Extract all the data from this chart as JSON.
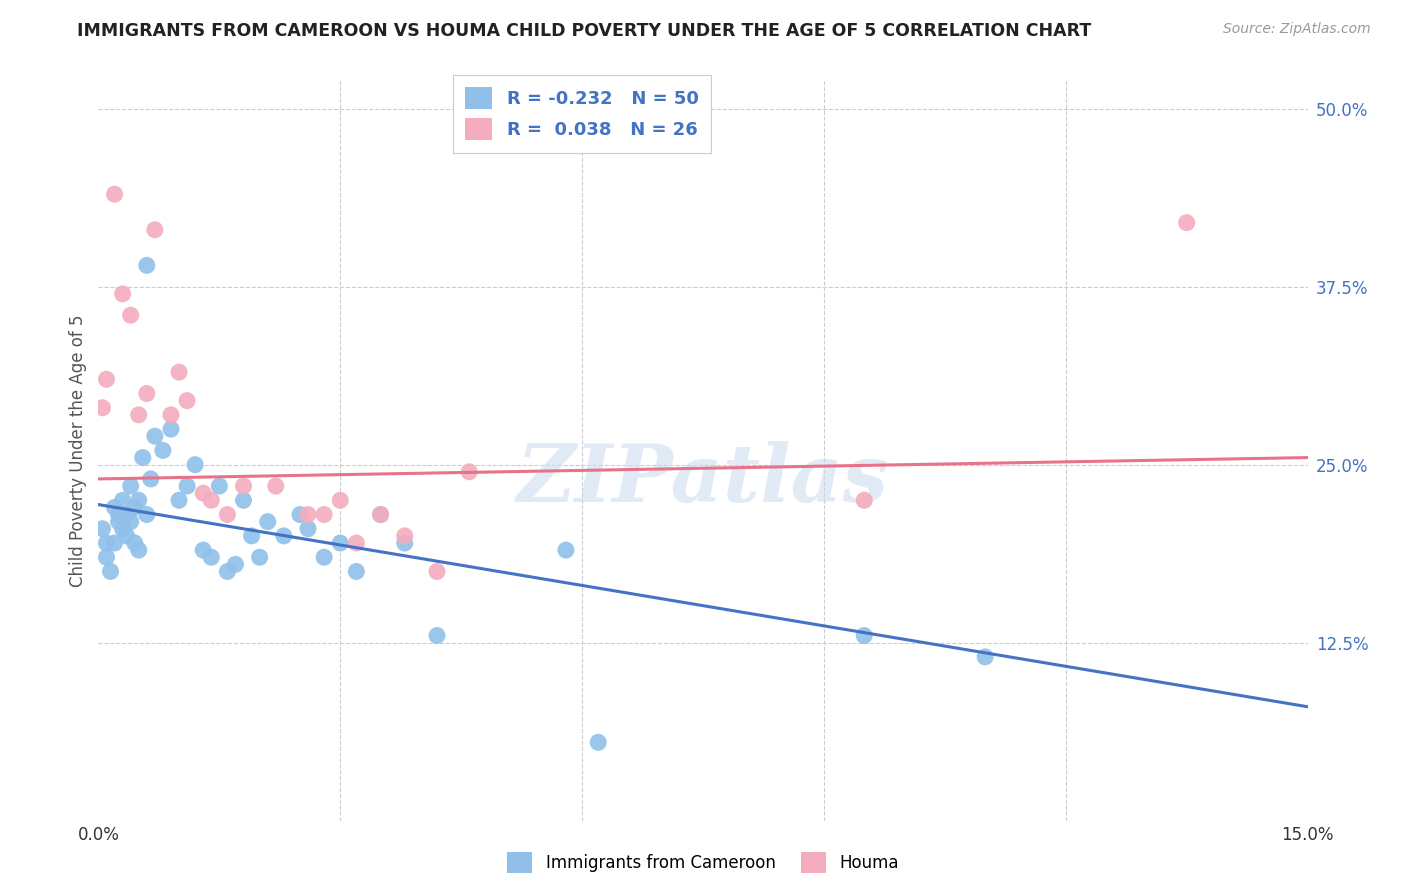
{
  "title": "IMMIGRANTS FROM CAMEROON VS HOUMA CHILD POVERTY UNDER THE AGE OF 5 CORRELATION CHART",
  "source": "Source: ZipAtlas.com",
  "ylabel": "Child Poverty Under the Age of 5",
  "xlim": [
    0.0,
    0.15
  ],
  "ylim": [
    0.0,
    0.52
  ],
  "xtick_positions": [
    0.0,
    0.03,
    0.06,
    0.09,
    0.12,
    0.15
  ],
  "xtick_labels": [
    "0.0%",
    "",
    "",
    "",
    "",
    "15.0%"
  ],
  "ytick_positions": [
    0.125,
    0.25,
    0.375,
    0.5
  ],
  "ytick_labels": [
    "12.5%",
    "25.0%",
    "37.5%",
    "50.0%"
  ],
  "blue_color": "#90C0EA",
  "pink_color": "#F4ACBE",
  "blue_line_color": "#4472C4",
  "pink_line_color": "#E8728A",
  "R_blue": -0.232,
  "N_blue": 50,
  "R_pink": 0.038,
  "N_pink": 26,
  "legend_label_blue": "Immigrants from Cameroon",
  "legend_label_pink": "Houma",
  "watermark": "ZIPatlas",
  "grid_color": "#CCCCCC",
  "blue_scatter_x": [
    0.0005,
    0.001,
    0.001,
    0.0015,
    0.002,
    0.002,
    0.0025,
    0.0025,
    0.003,
    0.003,
    0.0035,
    0.0035,
    0.004,
    0.004,
    0.0045,
    0.0045,
    0.005,
    0.005,
    0.0055,
    0.006,
    0.006,
    0.0065,
    0.007,
    0.008,
    0.009,
    0.01,
    0.011,
    0.012,
    0.013,
    0.014,
    0.015,
    0.016,
    0.017,
    0.018,
    0.019,
    0.02,
    0.021,
    0.023,
    0.025,
    0.026,
    0.028,
    0.03,
    0.032,
    0.035,
    0.038,
    0.042,
    0.058,
    0.062,
    0.095,
    0.11
  ],
  "blue_scatter_y": [
    0.205,
    0.195,
    0.185,
    0.175,
    0.22,
    0.195,
    0.21,
    0.215,
    0.225,
    0.205,
    0.215,
    0.2,
    0.235,
    0.21,
    0.195,
    0.22,
    0.225,
    0.19,
    0.255,
    0.39,
    0.215,
    0.24,
    0.27,
    0.26,
    0.275,
    0.225,
    0.235,
    0.25,
    0.19,
    0.185,
    0.235,
    0.175,
    0.18,
    0.225,
    0.2,
    0.185,
    0.21,
    0.2,
    0.215,
    0.205,
    0.185,
    0.195,
    0.175,
    0.215,
    0.195,
    0.13,
    0.19,
    0.055,
    0.13,
    0.115
  ],
  "pink_scatter_x": [
    0.0005,
    0.001,
    0.002,
    0.003,
    0.004,
    0.005,
    0.006,
    0.007,
    0.009,
    0.01,
    0.011,
    0.013,
    0.014,
    0.016,
    0.018,
    0.022,
    0.026,
    0.028,
    0.03,
    0.032,
    0.035,
    0.038,
    0.042,
    0.046,
    0.095,
    0.135
  ],
  "pink_scatter_y": [
    0.29,
    0.31,
    0.44,
    0.37,
    0.355,
    0.285,
    0.3,
    0.415,
    0.285,
    0.315,
    0.295,
    0.23,
    0.225,
    0.215,
    0.235,
    0.235,
    0.215,
    0.215,
    0.225,
    0.195,
    0.215,
    0.2,
    0.175,
    0.245,
    0.225,
    0.42
  ]
}
